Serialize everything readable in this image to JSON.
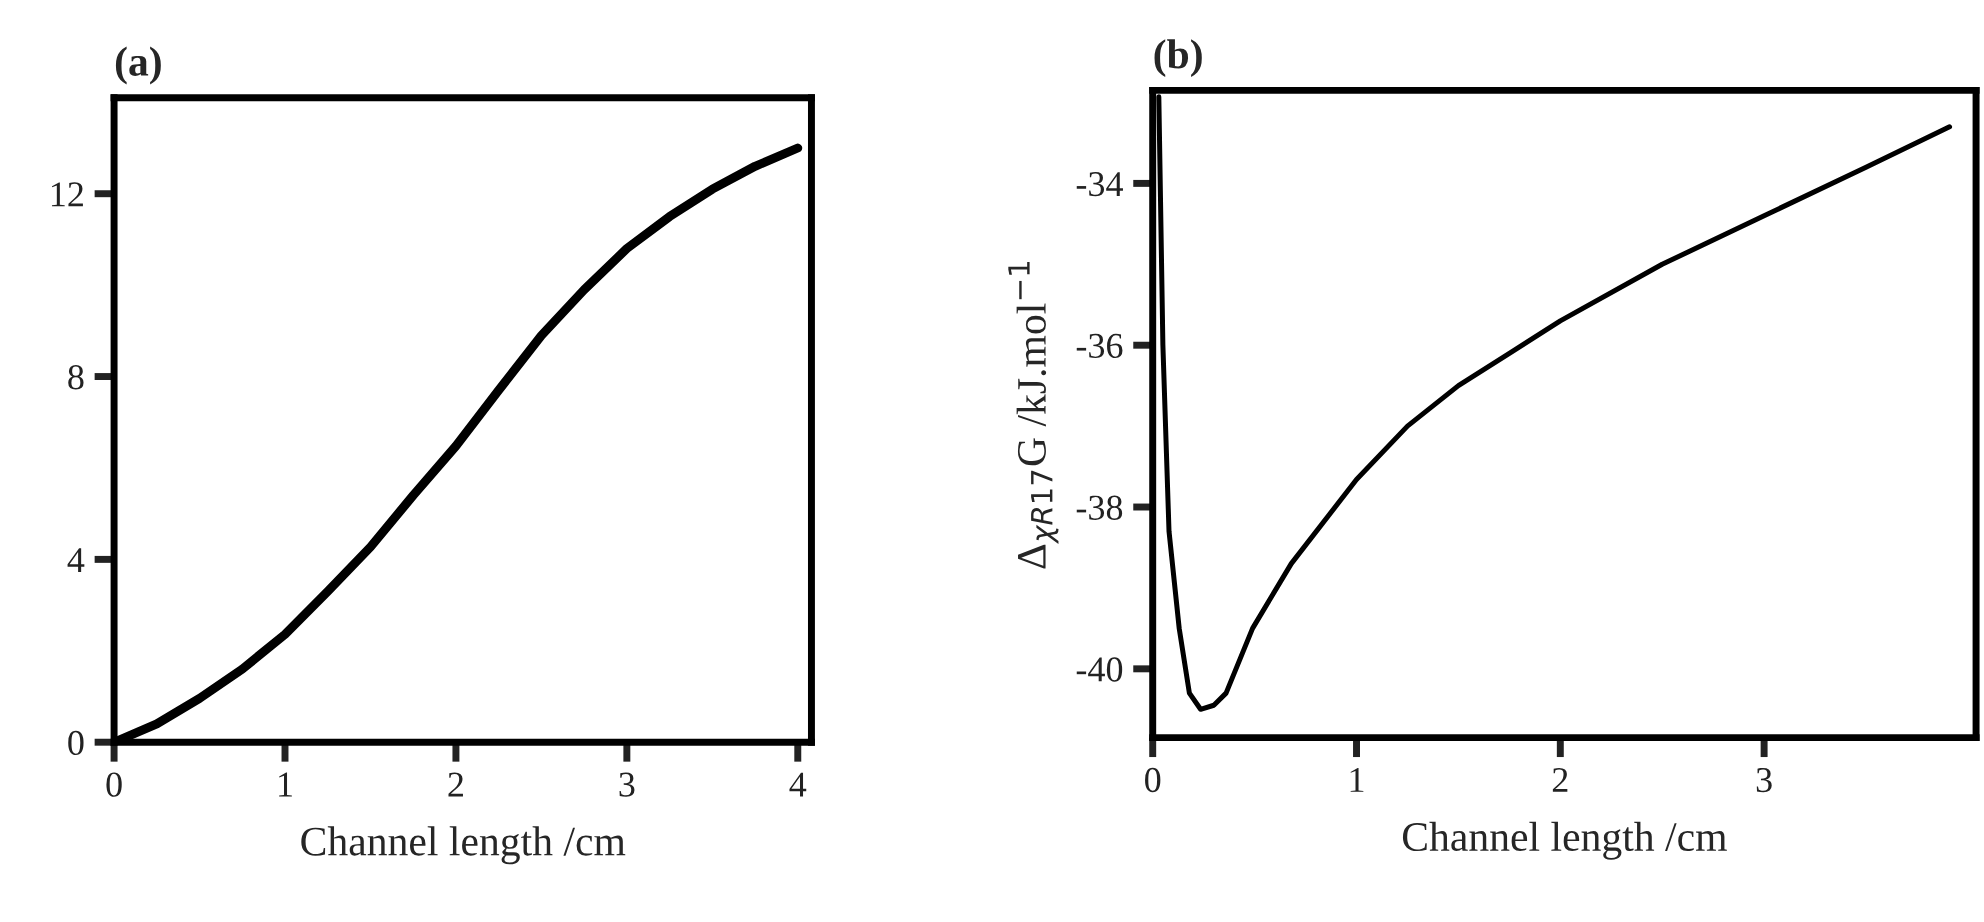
{
  "chart_data": [
    {
      "type": "line",
      "title": "(a)",
      "xlabel": "Channel length /cm",
      "xlim": [
        0,
        4.08
      ],
      "ylim": [
        0,
        14.1
      ],
      "xticks": [
        0,
        1,
        2,
        3,
        4
      ],
      "yticks": [
        0,
        4,
        8,
        12
      ],
      "grid": false,
      "legend": false,
      "series": [
        {
          "color": "#000000",
          "x": [
            0,
            0.25,
            0.5,
            0.75,
            1,
            1.25,
            1.5,
            1.75,
            2,
            2.25,
            2.5,
            2.75,
            3,
            3.25,
            3.5,
            3.75,
            4
          ],
          "values": [
            0,
            0.4,
            0.96,
            1.6,
            2.36,
            3.3,
            4.27,
            5.4,
            6.48,
            7.7,
            8.9,
            9.9,
            10.8,
            11.5,
            12.1,
            12.6,
            13.0
          ]
        }
      ]
    },
    {
      "type": "line",
      "title": "(b)",
      "xlabel": "Channel length /cm",
      "ylabel": "Δ$_{χR17}$G /kJ.mol$^{−1}$",
      "xlim": [
        0,
        4.04
      ],
      "ylim": [
        -40.85,
        -32.85
      ],
      "xticks": [
        0,
        1,
        2,
        3
      ],
      "yticks": [
        -40,
        -38,
        -36,
        -34
      ],
      "grid": false,
      "legend": false,
      "series": [
        {
          "color": "#000000",
          "x": [
            0.03,
            0.05,
            0.08,
            0.13,
            0.18,
            0.235,
            0.3,
            0.36,
            0.49,
            0.68,
            1,
            1.25,
            1.5,
            1.75,
            2,
            2.5,
            3,
            3.5,
            3.91
          ],
          "values": [
            -32.93,
            -36.0,
            -38.3,
            -39.5,
            -40.3,
            -40.5,
            -40.45,
            -40.3,
            -39.5,
            -38.7,
            -37.66,
            -37.0,
            -36.5,
            -36.1,
            -35.7,
            -35.0,
            -34.4,
            -33.8,
            -33.3
          ]
        }
      ]
    }
  ]
}
